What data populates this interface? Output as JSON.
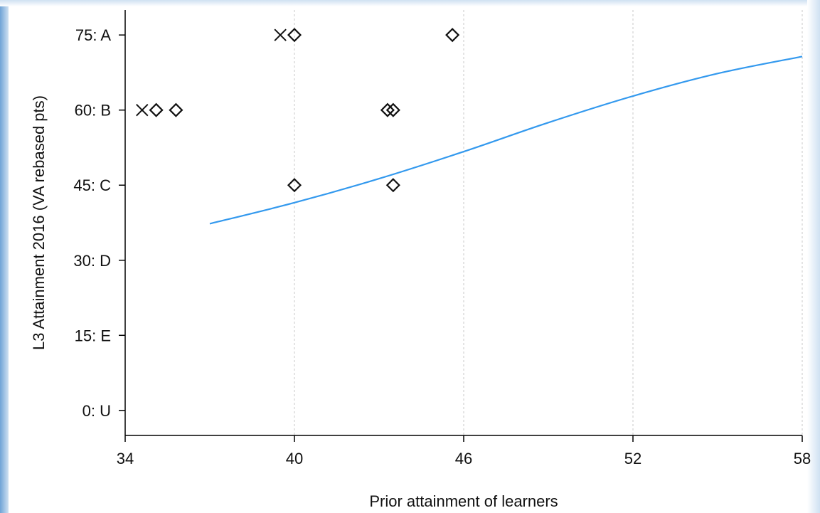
{
  "chart_data": {
    "type": "scatter",
    "xlabel": "Prior attainment of learners",
    "ylabel": "L3 Attainment 2016 (VA rebased pts)",
    "xlim": [
      34,
      58
    ],
    "ylim": [
      -5,
      80
    ],
    "x_ticks": [
      {
        "value": 34,
        "label": "34"
      },
      {
        "value": 40,
        "label": "40"
      },
      {
        "value": 46,
        "label": "46"
      },
      {
        "value": 52,
        "label": "52"
      },
      {
        "value": 58,
        "label": "58"
      }
    ],
    "y_ticks": [
      {
        "value": 0,
        "label": "0: U"
      },
      {
        "value": 15,
        "label": "15: E"
      },
      {
        "value": 30,
        "label": "30: D"
      },
      {
        "value": 45,
        "label": "45: C"
      },
      {
        "value": 60,
        "label": "60: B"
      },
      {
        "value": 75,
        "label": "75: A"
      }
    ],
    "grid": "vertical dashed",
    "series": [
      {
        "marker": "diamond",
        "points": [
          {
            "x": 40.0,
            "y": 75
          },
          {
            "x": 45.6,
            "y": 75
          },
          {
            "x": 35.1,
            "y": 60
          },
          {
            "x": 35.8,
            "y": 60
          },
          {
            "x": 43.3,
            "y": 60
          },
          {
            "x": 43.5,
            "y": 60
          },
          {
            "x": 40.0,
            "y": 45
          },
          {
            "x": 43.5,
            "y": 45
          }
        ]
      },
      {
        "marker": "x",
        "points": [
          {
            "x": 39.5,
            "y": 75
          },
          {
            "x": 34.6,
            "y": 60
          }
        ]
      },
      {
        "marker": "line",
        "color": "#3399ee",
        "points": [
          {
            "x": 37.0,
            "y": 37.3
          },
          {
            "x": 40.0,
            "y": 41.5
          },
          {
            "x": 43.0,
            "y": 46.3
          },
          {
            "x": 46.0,
            "y": 51.7
          },
          {
            "x": 49.0,
            "y": 57.5
          },
          {
            "x": 52.0,
            "y": 62.8
          },
          {
            "x": 55.0,
            "y": 67.3
          },
          {
            "x": 58.0,
            "y": 70.7
          }
        ]
      }
    ]
  }
}
